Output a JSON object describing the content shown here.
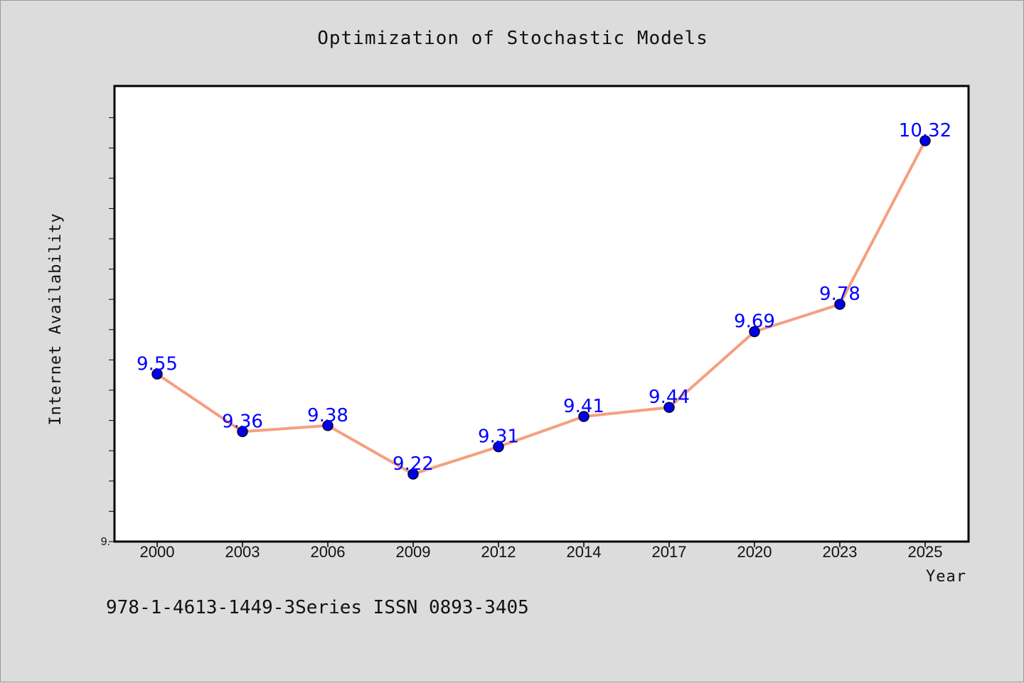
{
  "chart_data": {
    "type": "line",
    "title": "Optimization of Stochastic Models",
    "xlabel": "Year",
    "ylabel": "Internet Availability",
    "categories": [
      "2000",
      "2003",
      "2006",
      "2009",
      "2012",
      "2014",
      "2017",
      "2020",
      "2023",
      "2025"
    ],
    "series": [
      {
        "values": [
          9.55,
          9.36,
          9.38,
          9.22,
          9.31,
          9.41,
          9.44,
          9.69,
          9.78,
          10.32
        ],
        "labels": [
          "9.55",
          "9.36",
          "9.38",
          "9.22",
          "9.31",
          "9.41",
          "9.44",
          "9.69",
          "9.78",
          "10.32"
        ]
      }
    ],
    "ylim": [
      8.9,
      10.4
    ],
    "ytick_major": 0.2,
    "ytick_minor": 0.1,
    "ytick_labels": [
      "9."
    ],
    "grid": false,
    "line_color": "#f4a080",
    "marker_color": "#0000ee",
    "label_color": "#0000ff",
    "background": "#dcdcdc",
    "plot_background": "#ffffff"
  },
  "footer": "978-1-4613-1449-3Series ISSN 0893-3405"
}
